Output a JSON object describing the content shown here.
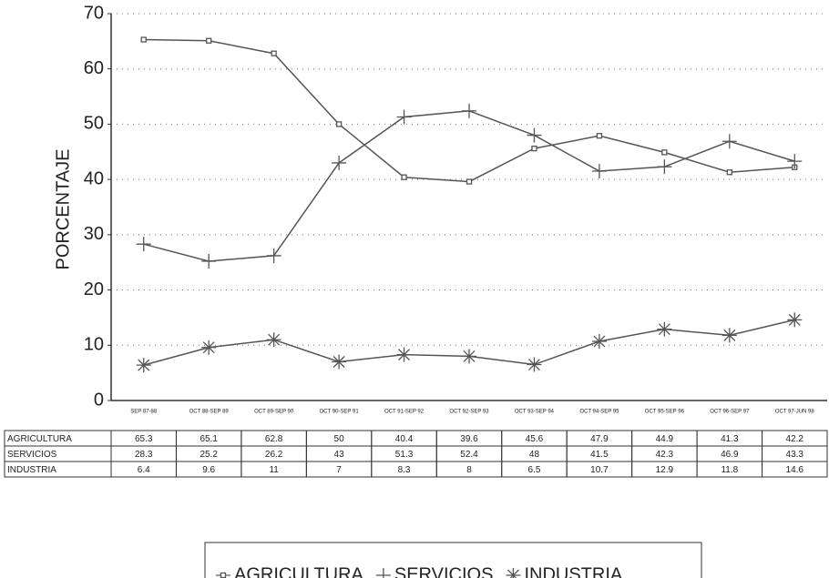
{
  "chart_data": {
    "type": "line",
    "ylabel": "PORCENTAJE",
    "categories": [
      "SEP 87-88",
      "OCT 88-SEP 89",
      "OCT 89-SEP 90",
      "OCT 90-SEP 91",
      "OCT 91-SEP 92",
      "OCT 92-SEP 93",
      "OCT 93-SEP 94",
      "OCT 94-SEP 95",
      "OCT 95-SEP 96",
      "OCT 96-SEP 97",
      "OCT 97-JUN 98"
    ],
    "series": [
      {
        "name": "AGRICULTURA",
        "color": "#555555",
        "marker": "square",
        "values": [
          65.3,
          65.1,
          62.8,
          50,
          40.4,
          39.6,
          45.6,
          47.9,
          44.9,
          41.3,
          42.2
        ]
      },
      {
        "name": "SERVICIOS",
        "color": "#555555",
        "marker": "plus",
        "values": [
          28.3,
          25.2,
          26.2,
          43,
          51.3,
          52.4,
          48,
          41.5,
          42.3,
          46.9,
          43.3
        ]
      },
      {
        "name": "INDUSTRIA",
        "color": "#555555",
        "marker": "asterisk",
        "values": [
          6.4,
          9.6,
          11,
          7,
          8.3,
          8,
          6.5,
          10.7,
          12.9,
          11.8,
          14.6
        ]
      }
    ],
    "ylim": [
      0,
      70
    ],
    "yticks": [
      0,
      10,
      20,
      30,
      40,
      50,
      60,
      70
    ],
    "grid": true,
    "legend": "bottom"
  }
}
